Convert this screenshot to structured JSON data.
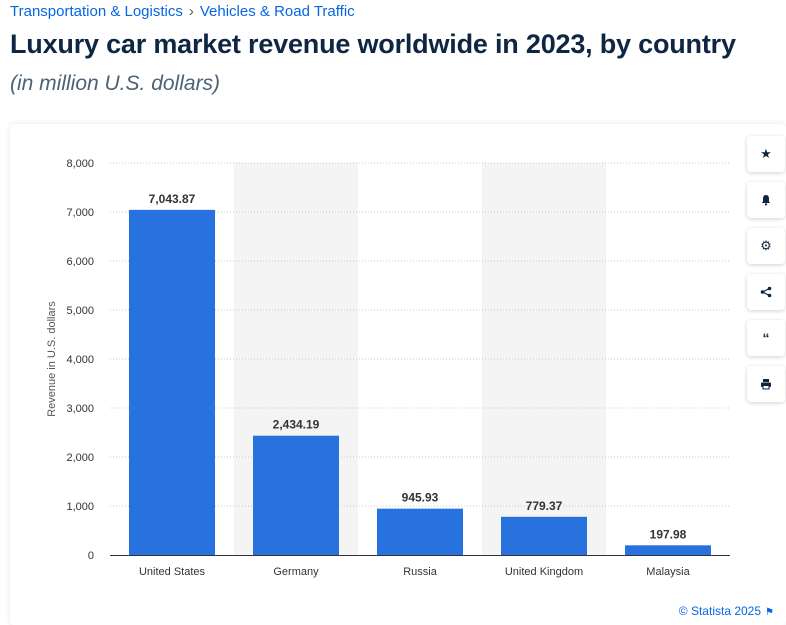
{
  "breadcrumb": {
    "items": [
      "Transportation & Logistics",
      "Vehicles & Road Traffic"
    ],
    "separator": "›"
  },
  "title": "Luxury car market revenue worldwide in 2023, by country",
  "subtitle": "(in million U.S. dollars)",
  "footer": {
    "text": "© Statista 2025"
  },
  "tools": [
    "star-icon",
    "bell-icon",
    "gear-icon",
    "share-icon",
    "quote-icon",
    "print-icon"
  ],
  "colors": {
    "bar": "#2872df",
    "band": "#f4f4f4",
    "grid": "#c8c8c8",
    "link": "#0666e5"
  },
  "chart_data": {
    "type": "bar",
    "title": "Luxury car market revenue worldwide in 2023, by country",
    "xlabel": "",
    "ylabel": "Revenue in U.S. dollars",
    "categories": [
      "United States",
      "Germany",
      "Russia",
      "United Kingdom",
      "Malaysia"
    ],
    "values": [
      7043.87,
      2434.19,
      945.93,
      779.37,
      197.98
    ],
    "value_labels": [
      "7,043.87",
      "2,434.19",
      "945.93",
      "779.37",
      "197.98"
    ],
    "ylim": [
      0,
      8000
    ],
    "yticks": [
      0,
      1000,
      2000,
      3000,
      4000,
      5000,
      6000,
      7000,
      8000
    ],
    "ytick_labels": [
      "0",
      "1,000",
      "2,000",
      "3,000",
      "4,000",
      "5,000",
      "6,000",
      "7,000",
      "8,000"
    ],
    "grid": true
  }
}
